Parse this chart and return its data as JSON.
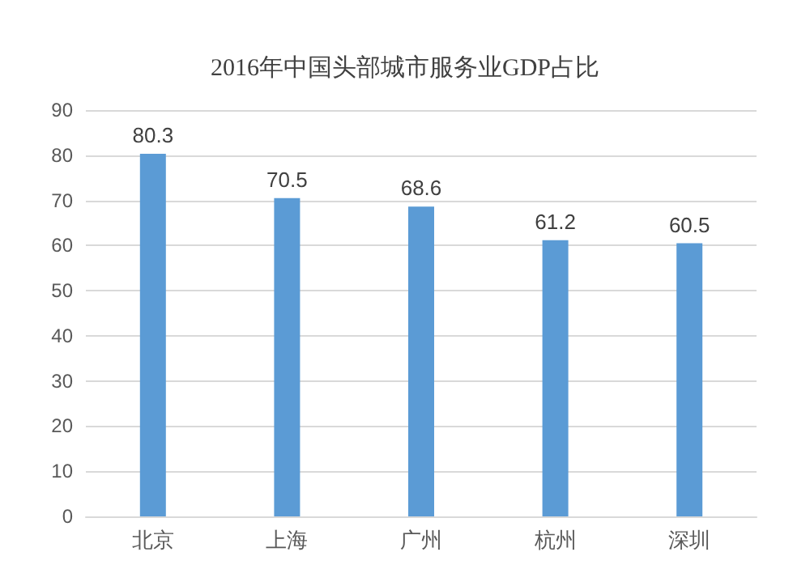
{
  "chart_data": {
    "type": "bar",
    "title": "2016年中国头部城市服务业GDP占比",
    "categories": [
      "北京",
      "上海",
      "广州",
      "杭州",
      "深圳"
    ],
    "values": [
      80.3,
      70.5,
      68.6,
      61.2,
      60.5
    ],
    "color": "#5b9bd5",
    "ylim": [
      0,
      90
    ],
    "yticks": [
      0,
      10,
      20,
      30,
      40,
      50,
      60,
      70,
      80,
      90
    ],
    "grid": "y",
    "data_labels": true
  }
}
